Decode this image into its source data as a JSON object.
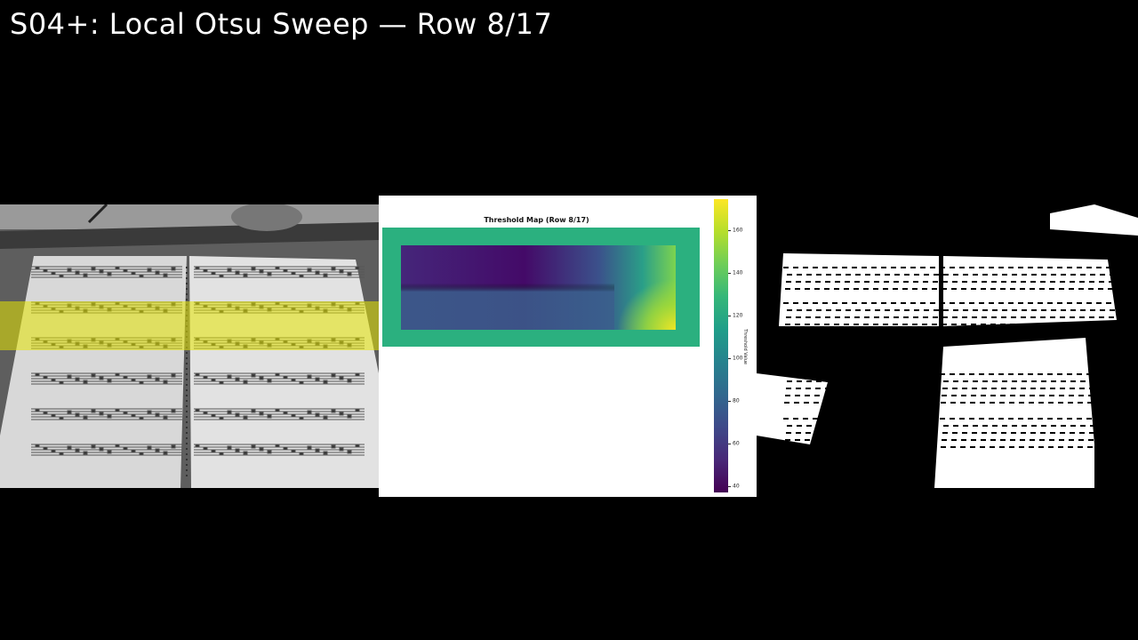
{
  "title": "S04+: Local Otsu Sweep — Row 8/17",
  "threshold_map": {
    "title": "Threshold Map (Row 8/17)",
    "colorbar_label": "Threshold Value",
    "colorbar_ticks": [
      "160",
      "140",
      "120",
      "100",
      "80",
      "60",
      "40"
    ],
    "colormap": "viridis",
    "frame_color": "#2bb07f"
  },
  "highlight": {
    "current_row": 8,
    "total_rows": 17,
    "color": "#e6e600"
  }
}
